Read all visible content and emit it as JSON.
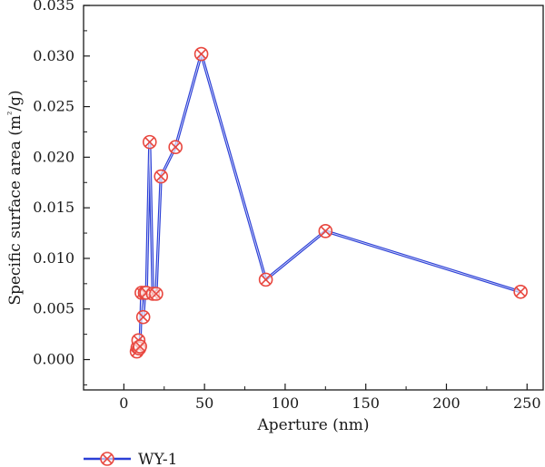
{
  "chart_data": {
    "type": "line",
    "xlabel": "Aperture (nm)",
    "ylabel": "Specific surface area (m²/g)",
    "xlim": [
      -25,
      260
    ],
    "ylim": [
      -0.003,
      0.035
    ],
    "xticks": [
      0,
      50,
      100,
      150,
      200,
      250
    ],
    "xtick_labels": [
      "0",
      "50",
      "100",
      "150",
      "200",
      "250"
    ],
    "yticks": [
      0,
      0.005,
      0.01,
      0.015,
      0.02,
      0.025,
      0.03,
      0.035
    ],
    "ytick_labels": [
      "0.000",
      "0.005",
      "0.010",
      "0.015",
      "0.020",
      "0.025",
      "0.030",
      "0.035"
    ],
    "grid": false,
    "legend_position": "bottom-left",
    "series": [
      {
        "name": "WY-1",
        "color": "#2b3fd6",
        "marker_color": "#e8473f",
        "marker": "circle-x",
        "x": [
          8,
          8.5,
          9,
          9.5,
          10,
          11,
          12,
          13,
          14,
          16,
          18,
          20,
          23,
          32,
          48,
          88,
          125,
          246
        ],
        "y": [
          0.0008,
          0.0012,
          0.0019,
          0.0011,
          0.0013,
          0.0066,
          0.0042,
          0.0066,
          0.0066,
          0.0215,
          0.0065,
          0.0065,
          0.0181,
          0.021,
          0.0302,
          0.0079,
          0.0127,
          0.0067
        ]
      }
    ]
  }
}
